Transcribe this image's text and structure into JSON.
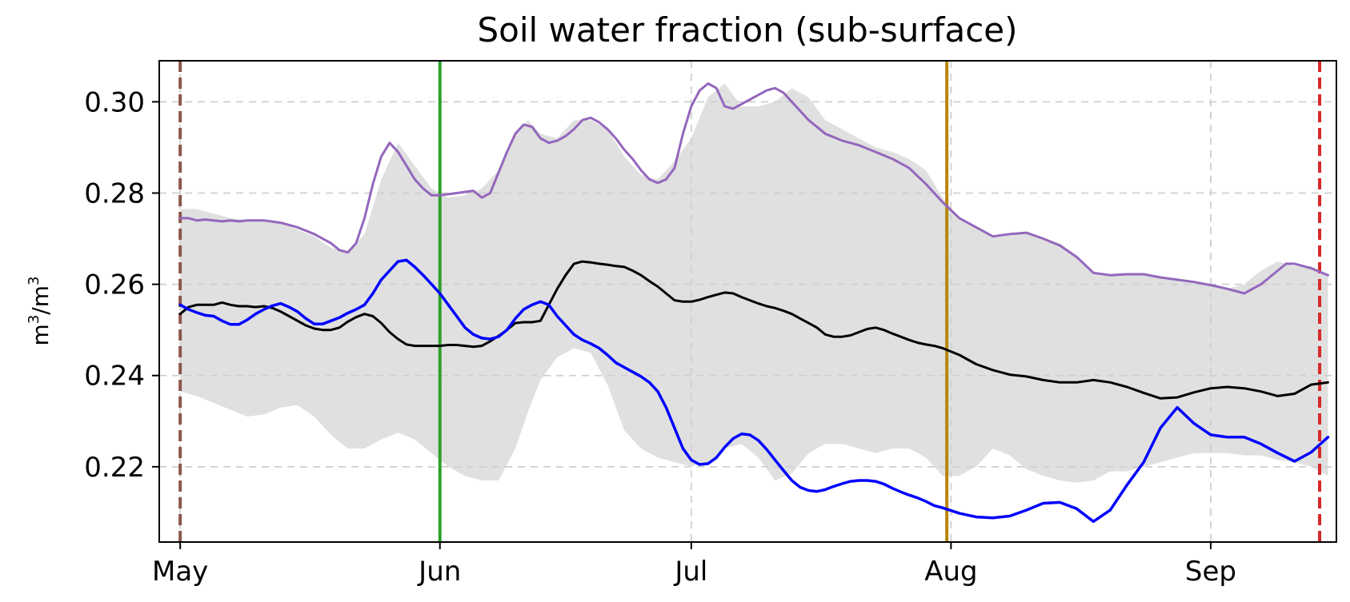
{
  "chart_data": {
    "type": "line",
    "title": "Soil water fraction (sub-surface)",
    "xlabel": "",
    "ylabel": {
      "base": "m",
      "sup": "3",
      "sep": "/m",
      "sup2": "3"
    },
    "x_unit": "day of year",
    "xlim": [
      118.5,
      259
    ],
    "ylim": [
      0.2035,
      0.309
    ],
    "grid": true,
    "x_ticks": [
      {
        "label": "May",
        "value": 121
      },
      {
        "label": "Jun",
        "value": 152
      },
      {
        "label": "Jul",
        "value": 182
      },
      {
        "label": "Aug",
        "value": 213
      },
      {
        "label": "Sep",
        "value": 244
      }
    ],
    "y_ticks": [
      {
        "label": "0.22",
        "value": 0.22
      },
      {
        "label": "0.24",
        "value": 0.24
      },
      {
        "label": "0.26",
        "value": 0.26
      },
      {
        "label": "0.28",
        "value": 0.28
      },
      {
        "label": "0.30",
        "value": 0.3
      }
    ],
    "vlines": [
      {
        "name": "vline-brown",
        "x": 121,
        "color": "#8c564b",
        "style": "dashed"
      },
      {
        "name": "vline-green",
        "x": 152,
        "color": "#2ca02c",
        "style": "solid"
      },
      {
        "name": "vline-gold",
        "x": 212.5,
        "color": "#b8860b",
        "style": "solid"
      },
      {
        "name": "vline-red",
        "x": 257,
        "color": "#d62728",
        "style": "dashed"
      }
    ],
    "band": {
      "name": "ensemble-range",
      "color": "#e0e0e0",
      "x": [
        121,
        123,
        125,
        127,
        129,
        131,
        133,
        135,
        137,
        139,
        141,
        143,
        145,
        147,
        149,
        151,
        153,
        155,
        157,
        159,
        161,
        162.5,
        164,
        166,
        168,
        170,
        172,
        174,
        176,
        178,
        180,
        182,
        184,
        186,
        188,
        190,
        192,
        194,
        196,
        198,
        200,
        202,
        204,
        206,
        208,
        210,
        212,
        214,
        216,
        218,
        220,
        222,
        224,
        226,
        228,
        230,
        232,
        234,
        236,
        238,
        240,
        242,
        244,
        246,
        248,
        250,
        252,
        254,
        256,
        258
      ],
      "upper": [
        0.2765,
        0.2765,
        0.2755,
        0.2745,
        0.274,
        0.274,
        0.2735,
        0.272,
        0.2705,
        0.268,
        0.267,
        0.271,
        0.283,
        0.291,
        0.286,
        0.281,
        0.279,
        0.2795,
        0.281,
        0.285,
        0.293,
        0.296,
        0.293,
        0.292,
        0.296,
        0.296,
        0.294,
        0.288,
        0.284,
        0.283,
        0.287,
        0.292,
        0.301,
        0.304,
        0.299,
        0.299,
        0.3,
        0.303,
        0.301,
        0.296,
        0.294,
        0.292,
        0.29,
        0.289,
        0.2875,
        0.285,
        0.279,
        0.2745,
        0.2725,
        0.2705,
        0.271,
        0.2715,
        0.27,
        0.269,
        0.266,
        0.2625,
        0.262,
        0.262,
        0.262,
        0.2615,
        0.261,
        0.2605,
        0.26,
        0.259,
        0.26,
        0.263,
        0.265,
        0.264,
        0.264,
        0.262
      ],
      "lower": [
        0.2365,
        0.2355,
        0.234,
        0.2325,
        0.231,
        0.2315,
        0.233,
        0.2335,
        0.231,
        0.227,
        0.224,
        0.224,
        0.226,
        0.2275,
        0.226,
        0.223,
        0.22,
        0.218,
        0.217,
        0.217,
        0.224,
        0.232,
        0.239,
        0.244,
        0.246,
        0.245,
        0.238,
        0.228,
        0.224,
        0.222,
        0.221,
        0.22,
        0.221,
        0.224,
        0.225,
        0.222,
        0.217,
        0.2185,
        0.223,
        0.225,
        0.225,
        0.224,
        0.223,
        0.224,
        0.224,
        0.222,
        0.218,
        0.218,
        0.22,
        0.224,
        0.2225,
        0.2195,
        0.218,
        0.217,
        0.2165,
        0.217,
        0.219,
        0.219,
        0.22,
        0.221,
        0.222,
        0.223,
        0.223,
        0.223,
        0.2225,
        0.2225,
        0.2215,
        0.221,
        0.22,
        0.218
      ]
    },
    "series": [
      {
        "name": "purple-line",
        "color": "#9467bd",
        "width": 3,
        "x": [
          121,
          122,
          123,
          124,
          125,
          126,
          127,
          128,
          129,
          131,
          133,
          135,
          137,
          139,
          140,
          141,
          142,
          143,
          144,
          145,
          146,
          147,
          148,
          149,
          150,
          151,
          152,
          154,
          156,
          157,
          158,
          159,
          160,
          161,
          162,
          163,
          164,
          165,
          166,
          167,
          168,
          169,
          170,
          171,
          172,
          173,
          174,
          175,
          176,
          177,
          178,
          179,
          180,
          181,
          182,
          183,
          184,
          185,
          186,
          187,
          188,
          189,
          190,
          191,
          192,
          193,
          194,
          195,
          196,
          197,
          198,
          200,
          202,
          204,
          206,
          208,
          210,
          212,
          214,
          216,
          218,
          220,
          222,
          224,
          226,
          228,
          230,
          232,
          234,
          236,
          238,
          240,
          242,
          244,
          246,
          248,
          250,
          252,
          253,
          254,
          256,
          258
        ],
        "y": [
          0.2745,
          0.2745,
          0.274,
          0.2742,
          0.274,
          0.2738,
          0.274,
          0.2738,
          0.274,
          0.274,
          0.2735,
          0.2725,
          0.271,
          0.269,
          0.2675,
          0.267,
          0.269,
          0.2745,
          0.282,
          0.288,
          0.291,
          0.289,
          0.286,
          0.283,
          0.281,
          0.2795,
          0.2795,
          0.28,
          0.2805,
          0.279,
          0.28,
          0.2845,
          0.289,
          0.293,
          0.295,
          0.2945,
          0.292,
          0.291,
          0.2915,
          0.2925,
          0.294,
          0.296,
          0.2965,
          0.2955,
          0.294,
          0.292,
          0.2895,
          0.2875,
          0.285,
          0.283,
          0.2822,
          0.283,
          0.2855,
          0.293,
          0.299,
          0.3025,
          0.304,
          0.303,
          0.299,
          0.2985,
          0.2995,
          0.3005,
          0.3015,
          0.3025,
          0.303,
          0.302,
          0.3,
          0.298,
          0.296,
          0.2945,
          0.293,
          0.2915,
          0.2905,
          0.289,
          0.2875,
          0.2855,
          0.282,
          0.278,
          0.2745,
          0.2725,
          0.2705,
          0.271,
          0.2713,
          0.27,
          0.2685,
          0.266,
          0.2625,
          0.262,
          0.2622,
          0.2622,
          0.2615,
          0.261,
          0.2605,
          0.2598,
          0.259,
          0.258,
          0.26,
          0.263,
          0.2645,
          0.2645,
          0.2635,
          0.262
        ]
      },
      {
        "name": "black-line",
        "color": "#000000",
        "width": 3,
        "x": [
          121,
          122,
          123,
          124,
          125,
          126,
          127,
          128,
          129,
          130,
          131,
          132,
          133,
          134,
          135,
          136,
          137,
          138,
          139,
          140,
          141,
          142,
          143,
          144,
          145,
          146,
          147,
          148,
          149,
          150,
          151,
          152,
          153,
          154,
          155,
          156,
          157,
          158,
          159,
          160,
          161,
          162,
          163,
          164,
          165,
          166,
          167,
          168,
          169,
          170,
          171,
          172,
          173,
          174,
          175,
          176,
          177,
          178,
          179,
          180,
          181,
          182,
          183,
          184,
          185,
          186,
          187,
          188,
          189,
          190,
          191,
          192,
          193,
          194,
          195,
          196,
          197,
          198,
          199,
          200,
          201,
          202,
          203,
          204,
          205,
          206,
          207,
          208,
          209,
          210,
          211,
          212,
          214,
          216,
          218,
          220,
          222,
          224,
          226,
          228,
          230,
          232,
          234,
          236,
          238,
          240,
          242,
          244,
          246,
          248,
          250,
          252,
          254,
          256,
          258
        ],
        "y": [
          0.2535,
          0.255,
          0.2555,
          0.2555,
          0.2555,
          0.256,
          0.2555,
          0.2552,
          0.2552,
          0.255,
          0.2552,
          0.2548,
          0.254,
          0.253,
          0.252,
          0.251,
          0.2503,
          0.25,
          0.25,
          0.2505,
          0.2518,
          0.2528,
          0.2535,
          0.253,
          0.2515,
          0.2495,
          0.248,
          0.2468,
          0.2465,
          0.2465,
          0.2465,
          0.2465,
          0.2467,
          0.2467,
          0.2465,
          0.2463,
          0.2465,
          0.2475,
          0.2487,
          0.25,
          0.2515,
          0.2517,
          0.2517,
          0.252,
          0.2555,
          0.259,
          0.262,
          0.2645,
          0.265,
          0.2648,
          0.2645,
          0.2643,
          0.264,
          0.2638,
          0.263,
          0.262,
          0.2607,
          0.2595,
          0.258,
          0.2565,
          0.2562,
          0.2562,
          0.2566,
          0.2572,
          0.2577,
          0.2582,
          0.258,
          0.2572,
          0.2565,
          0.2558,
          0.2552,
          0.2548,
          0.2542,
          0.2535,
          0.2525,
          0.2515,
          0.2505,
          0.249,
          0.2485,
          0.2485,
          0.2488,
          0.2495,
          0.2502,
          0.2505,
          0.25,
          0.2492,
          0.2485,
          0.2478,
          0.2472,
          0.2468,
          0.2465,
          0.246,
          0.2445,
          0.2425,
          0.2412,
          0.2402,
          0.2398,
          0.239,
          0.2385,
          0.2385,
          0.239,
          0.2385,
          0.2375,
          0.2362,
          0.235,
          0.2352,
          0.2363,
          0.2372,
          0.2375,
          0.2372,
          0.2365,
          0.2355,
          0.236,
          0.238,
          0.2385
        ]
      },
      {
        "name": "blue-line",
        "color": "#0000ff",
        "width": 3.5,
        "x": [
          121,
          122,
          123,
          124,
          125,
          126,
          127,
          128,
          129,
          130,
          131,
          132,
          133,
          134,
          135,
          136,
          137,
          138,
          139,
          140,
          141,
          142,
          143,
          144,
          145,
          146,
          147,
          148,
          149,
          150,
          151,
          152,
          153,
          154,
          155,
          156,
          157,
          158,
          159,
          160,
          161,
          162,
          163,
          164,
          165,
          166,
          167,
          168,
          169,
          170,
          171,
          172,
          173,
          174,
          175,
          176,
          177,
          178,
          179,
          180,
          181,
          182,
          183,
          184,
          185,
          186,
          187,
          188,
          189,
          190,
          191,
          192,
          193,
          194,
          195,
          196,
          197,
          198,
          199,
          200,
          201,
          202,
          203,
          204,
          205,
          206,
          207,
          208,
          209,
          210,
          211,
          212,
          214,
          216,
          218,
          220,
          222,
          224,
          226,
          228,
          230,
          232,
          234,
          236,
          238,
          240,
          242,
          244,
          246,
          248,
          250,
          252,
          254,
          256,
          258
        ],
        "y": [
          0.2555,
          0.2545,
          0.2538,
          0.2532,
          0.253,
          0.252,
          0.2512,
          0.2512,
          0.2522,
          0.2535,
          0.2545,
          0.2553,
          0.2558,
          0.255,
          0.254,
          0.2525,
          0.2513,
          0.2513,
          0.252,
          0.2527,
          0.2537,
          0.2545,
          0.2555,
          0.258,
          0.261,
          0.263,
          0.265,
          0.2653,
          0.2638,
          0.262,
          0.26,
          0.258,
          0.2555,
          0.253,
          0.2505,
          0.249,
          0.2482,
          0.248,
          0.2485,
          0.25,
          0.2525,
          0.2545,
          0.2555,
          0.2562,
          0.2555,
          0.253,
          0.251,
          0.249,
          0.2478,
          0.247,
          0.246,
          0.2445,
          0.2428,
          0.2418,
          0.2408,
          0.2398,
          0.2385,
          0.2365,
          0.233,
          0.2285,
          0.224,
          0.2215,
          0.2205,
          0.2207,
          0.222,
          0.2243,
          0.2262,
          0.2272,
          0.227,
          0.2258,
          0.2238,
          0.2215,
          0.2192,
          0.217,
          0.2155,
          0.2148,
          0.2146,
          0.215,
          0.2157,
          0.2163,
          0.2168,
          0.217,
          0.217,
          0.2168,
          0.2162,
          0.2153,
          0.2145,
          0.2138,
          0.2132,
          0.2124,
          0.2115,
          0.211,
          0.2098,
          0.209,
          0.2088,
          0.2092,
          0.2105,
          0.212,
          0.2122,
          0.2108,
          0.208,
          0.2105,
          0.216,
          0.221,
          0.2285,
          0.233,
          0.2295,
          0.227,
          0.2265,
          0.2265,
          0.225,
          0.223,
          0.2212,
          0.2232,
          0.2265
        ]
      }
    ]
  }
}
